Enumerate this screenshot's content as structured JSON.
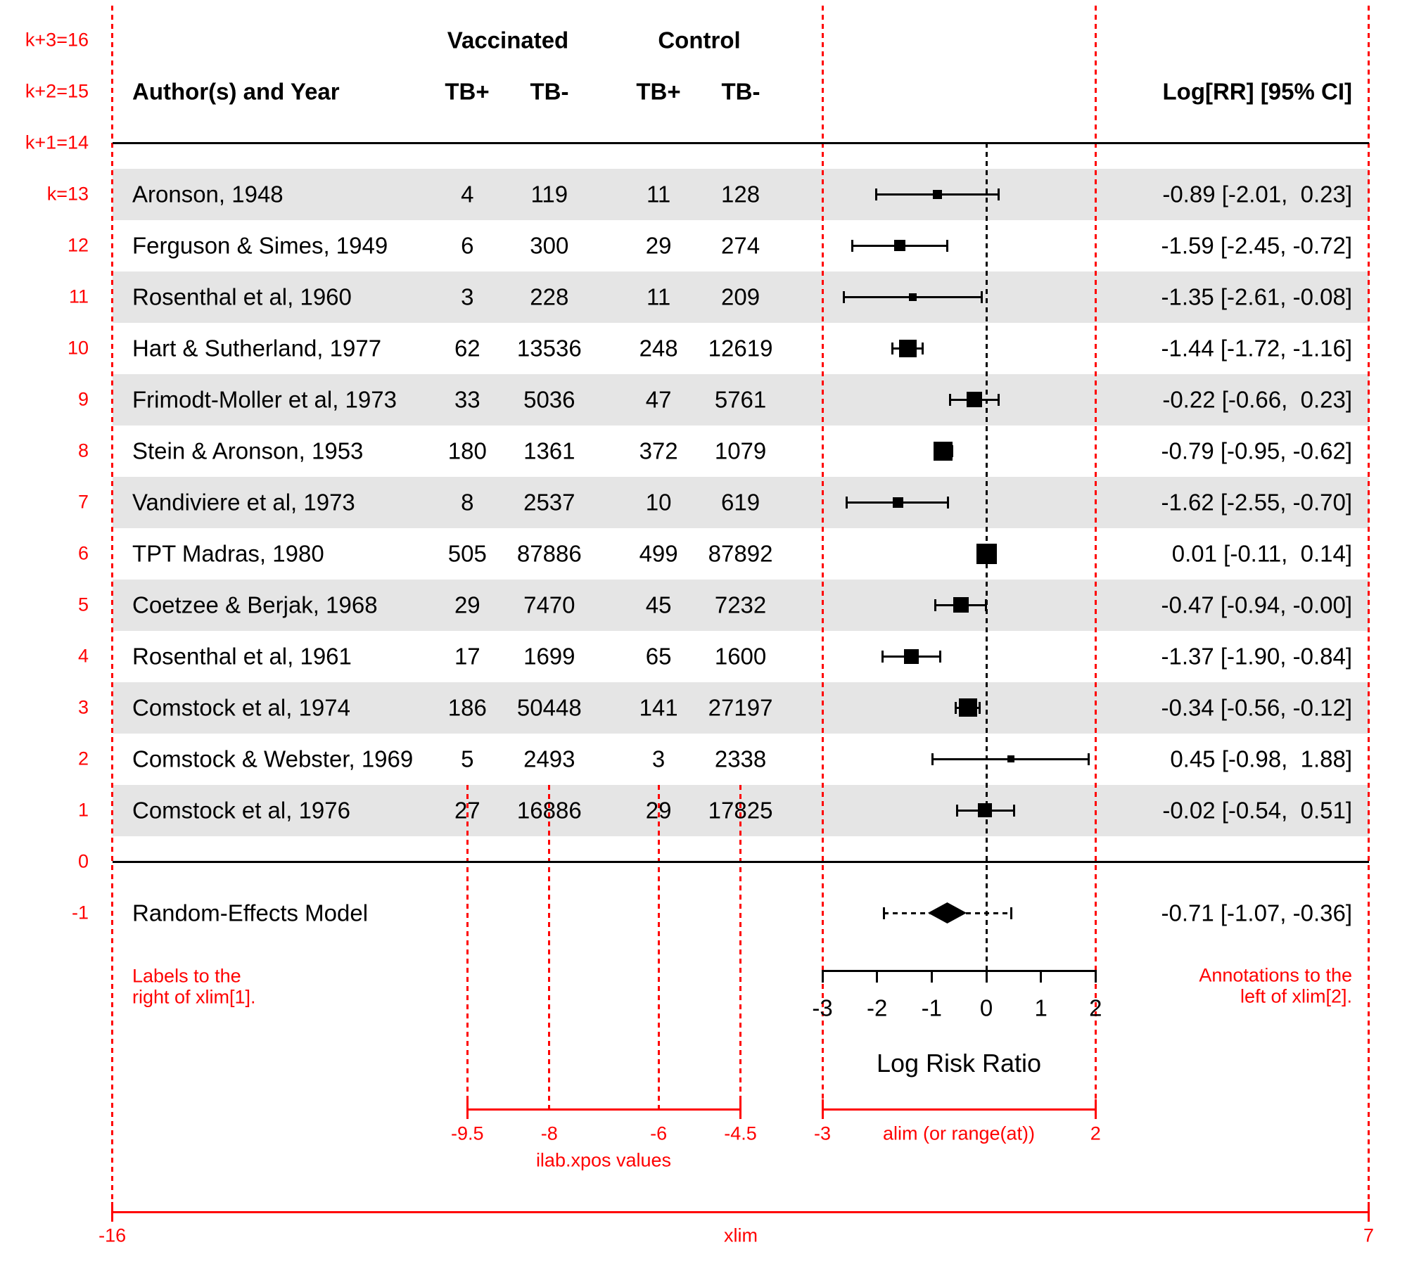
{
  "header": {
    "group1": "Vaccinated",
    "group2": "Control",
    "author_col": "Author(s) and Year",
    "tb_pos": "TB+",
    "tb_neg": "TB-",
    "annotation_col": "Log[RR] [95% CI]"
  },
  "red_guides": {
    "color": "#ff0000",
    "shade_color": "#e5e5e5",
    "k_scale": [
      {
        "row": 16,
        "label": "k+3=16"
      },
      {
        "row": 15,
        "label": "k+2=15"
      },
      {
        "row": 14,
        "label": "k+1=14"
      },
      {
        "row": 0,
        "label": "0"
      }
    ],
    "left_note_line1": "Labels to the",
    "left_note_line2": "right of xlim[1].",
    "right_note_line1": "Annotations to the",
    "right_note_line2": "left of xlim[2].",
    "ilab_caption": "ilab.xpos values",
    "alim_caption": "alim (or range(at))",
    "xlim_caption": "xlim"
  },
  "chart_data": {
    "type": "forest",
    "xlabel": "Log Risk Ratio",
    "axis_ticks": [
      -3,
      -2,
      -1,
      0,
      1,
      2
    ],
    "xlim": [
      -16,
      7
    ],
    "alim": [
      -3,
      2
    ],
    "ilab_xpos": [
      -9.5,
      -8,
      -6,
      -4.5
    ],
    "rows": [
      {
        "row": 13,
        "k_label": "k=13",
        "author": "Aronson, 1948",
        "ilab": [
          "4",
          "119",
          "11",
          "128"
        ],
        "estimate": -0.89,
        "ci_lb": -2.01,
        "ci_ub": 0.23,
        "annotation": "-0.89 [-2.01,  0.23]",
        "psize": 13,
        "shaded": true
      },
      {
        "row": 12,
        "k_label": "12",
        "author": "Ferguson & Simes, 1949",
        "ilab": [
          "6",
          "300",
          "29",
          "274"
        ],
        "estimate": -1.59,
        "ci_lb": -2.45,
        "ci_ub": -0.72,
        "annotation": "-1.59 [-2.45, -0.72]",
        "psize": 16,
        "shaded": false
      },
      {
        "row": 11,
        "k_label": "11",
        "author": "Rosenthal et al, 1960",
        "ilab": [
          "3",
          "228",
          "11",
          "209"
        ],
        "estimate": -1.35,
        "ci_lb": -2.61,
        "ci_ub": -0.08,
        "annotation": "-1.35 [-2.61, -0.08]",
        "psize": 11,
        "shaded": true
      },
      {
        "row": 10,
        "k_label": "10",
        "author": "Hart & Sutherland, 1977",
        "ilab": [
          "62",
          "13536",
          "248",
          "12619"
        ],
        "estimate": -1.44,
        "ci_lb": -1.72,
        "ci_ub": -1.16,
        "annotation": "-1.44 [-1.72, -1.16]",
        "psize": 25,
        "shaded": false
      },
      {
        "row": 9,
        "k_label": "9",
        "author": "Frimodt-Moller et al, 1973",
        "ilab": [
          "33",
          "5036",
          "47",
          "5761"
        ],
        "estimate": -0.22,
        "ci_lb": -0.66,
        "ci_ub": 0.23,
        "annotation": "-0.22 [-0.66,  0.23]",
        "psize": 22,
        "shaded": true
      },
      {
        "row": 8,
        "k_label": "8",
        "author": "Stein & Aronson, 1953",
        "ilab": [
          "180",
          "1361",
          "372",
          "1079"
        ],
        "estimate": -0.79,
        "ci_lb": -0.95,
        "ci_ub": -0.62,
        "annotation": "-0.79 [-0.95, -0.62]",
        "psize": 27,
        "shaded": false
      },
      {
        "row": 7,
        "k_label": "7",
        "author": "Vandiviere et al, 1973",
        "ilab": [
          "8",
          "2537",
          "10",
          "619"
        ],
        "estimate": -1.62,
        "ci_lb": -2.55,
        "ci_ub": -0.7,
        "annotation": "-1.62 [-2.55, -0.70]",
        "psize": 15,
        "shaded": true
      },
      {
        "row": 6,
        "k_label": "6",
        "author": "TPT Madras, 1980",
        "ilab": [
          "505",
          "87886",
          "499",
          "87892"
        ],
        "estimate": 0.01,
        "ci_lb": -0.11,
        "ci_ub": 0.14,
        "annotation": "0.01 [-0.11,  0.14]",
        "psize": 29,
        "shaded": false
      },
      {
        "row": 5,
        "k_label": "5",
        "author": "Coetzee & Berjak, 1968",
        "ilab": [
          "29",
          "7470",
          "45",
          "7232"
        ],
        "estimate": -0.47,
        "ci_lb": -0.94,
        "ci_ub": -0.004,
        "annotation": "-0.47 [-0.94, -0.00]",
        "psize": 22,
        "shaded": true
      },
      {
        "row": 4,
        "k_label": "4",
        "author": "Rosenthal et al, 1961",
        "ilab": [
          "17",
          "1699",
          "65",
          "1600"
        ],
        "estimate": -1.37,
        "ci_lb": -1.9,
        "ci_ub": -0.84,
        "annotation": "-1.37 [-1.90, -0.84]",
        "psize": 21,
        "shaded": false
      },
      {
        "row": 3,
        "k_label": "3",
        "author": "Comstock et al, 1974",
        "ilab": [
          "186",
          "50448",
          "141",
          "27197"
        ],
        "estimate": -0.34,
        "ci_lb": -0.56,
        "ci_ub": -0.12,
        "annotation": "-0.34 [-0.56, -0.12]",
        "psize": 26,
        "shaded": true
      },
      {
        "row": 2,
        "k_label": "2",
        "author": "Comstock & Webster, 1969",
        "ilab": [
          "5",
          "2493",
          "3",
          "2338"
        ],
        "estimate": 0.45,
        "ci_lb": -0.98,
        "ci_ub": 1.88,
        "annotation": "0.45 [-0.98,  1.88]",
        "psize": 10,
        "shaded": false
      },
      {
        "row": 1,
        "k_label": "1",
        "author": "Comstock et al, 1976",
        "ilab": [
          "27",
          "16886",
          "29",
          "17825"
        ],
        "estimate": -0.02,
        "ci_lb": -0.54,
        "ci_ub": 0.51,
        "annotation": "-0.02 [-0.54,  0.51]",
        "psize": 20,
        "shaded": true
      }
    ],
    "summary": {
      "row": -1,
      "k_label": "-1",
      "label": "Random-Effects Model",
      "estimate": -0.71,
      "ci_lb": -1.07,
      "ci_ub": -0.36,
      "pi_lb": -1.88,
      "pi_ub": 0.46,
      "annotation": "-0.71 [-1.07, -0.36]"
    }
  }
}
